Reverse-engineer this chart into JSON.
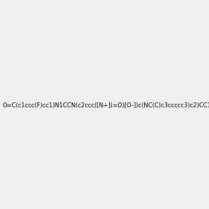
{
  "smiles": "O=C(c1ccc(F)cc1)N1CCN(c2ccc([N+](=O)[O-])c(NC(C)c3ccccc3)c2)CC1",
  "image_size": 300,
  "background_color": "#f0f0f0"
}
